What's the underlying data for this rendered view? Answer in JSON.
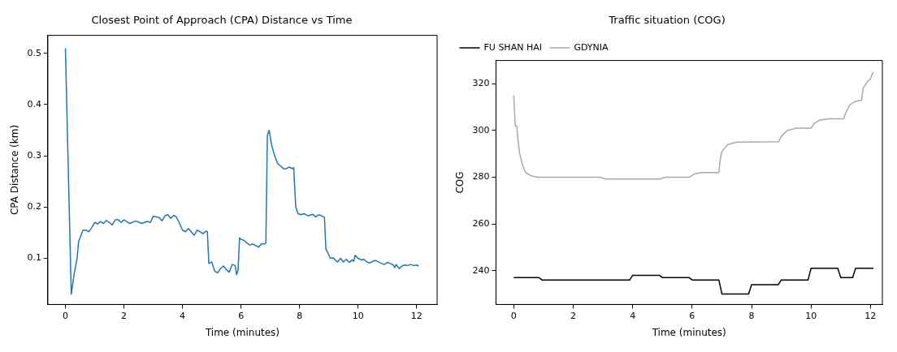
{
  "chart_data": [
    {
      "type": "line",
      "title": "Closest Point of Approach (CPA) Distance vs Time",
      "xlabel": "Time (minutes)",
      "ylabel": "CPA Distance (km)",
      "xlim": [
        -0.6,
        12.7
      ],
      "ylim": [
        0.01,
        0.535
      ],
      "xticks": [
        0,
        2,
        4,
        6,
        8,
        10,
        12
      ],
      "yticks": [
        0.1,
        0.2,
        0.3,
        0.4,
        0.5
      ],
      "grid": false,
      "legend": false,
      "series": [
        {
          "color": "#1f77b4",
          "x": [
            0,
            0.2,
            0.3,
            0.4,
            0.45,
            0.5,
            0.6,
            0.7,
            0.8,
            0.9,
            1.0,
            1.1,
            1.2,
            1.3,
            1.4,
            1.5,
            1.6,
            1.7,
            1.8,
            1.9,
            2.0,
            2.2,
            2.4,
            2.6,
            2.8,
            2.9,
            3.0,
            3.2,
            3.3,
            3.4,
            3.5,
            3.6,
            3.7,
            3.8,
            3.9,
            4.0,
            4.1,
            4.2,
            4.3,
            4.4,
            4.5,
            4.6,
            4.7,
            4.8,
            4.85,
            4.9,
            5.0,
            5.1,
            5.2,
            5.3,
            5.4,
            5.5,
            5.6,
            5.7,
            5.8,
            5.85,
            5.9,
            5.95,
            6.0,
            6.1,
            6.2,
            6.3,
            6.4,
            6.5,
            6.6,
            6.7,
            6.8,
            6.85,
            6.9,
            6.96,
            7.05,
            7.15,
            7.25,
            7.35,
            7.45,
            7.55,
            7.65,
            7.75,
            7.8,
            7.87,
            7.95,
            8.05,
            8.15,
            8.3,
            8.45,
            8.55,
            8.65,
            8.75,
            8.85,
            8.9,
            8.95,
            9.05,
            9.15,
            9.25,
            9.3,
            9.4,
            9.5,
            9.6,
            9.7,
            9.8,
            9.85,
            9.9,
            10.0,
            10.1,
            10.2,
            10.3,
            10.4,
            10.5,
            10.6,
            10.8,
            10.9,
            11.0,
            11.1,
            11.2,
            11.25,
            11.3,
            11.4,
            11.5,
            11.6,
            11.7,
            11.8,
            11.9,
            12.0,
            12.07
          ],
          "values": [
            0.51,
            0.03,
            0.07,
            0.1,
            0.133,
            0.14,
            0.155,
            0.155,
            0.152,
            0.16,
            0.17,
            0.167,
            0.172,
            0.168,
            0.174,
            0.17,
            0.165,
            0.175,
            0.176,
            0.17,
            0.175,
            0.168,
            0.173,
            0.168,
            0.172,
            0.17,
            0.182,
            0.18,
            0.173,
            0.183,
            0.185,
            0.178,
            0.184,
            0.18,
            0.168,
            0.155,
            0.152,
            0.158,
            0.152,
            0.145,
            0.155,
            0.152,
            0.148,
            0.153,
            0.152,
            0.09,
            0.093,
            0.075,
            0.072,
            0.08,
            0.085,
            0.078,
            0.073,
            0.088,
            0.086,
            0.068,
            0.078,
            0.14,
            0.137,
            0.135,
            0.13,
            0.126,
            0.128,
            0.125,
            0.122,
            0.128,
            0.128,
            0.13,
            0.34,
            0.35,
            0.32,
            0.3,
            0.285,
            0.28,
            0.275,
            0.275,
            0.278,
            0.275,
            0.277,
            0.2,
            0.187,
            0.185,
            0.187,
            0.183,
            0.186,
            0.181,
            0.185,
            0.183,
            0.18,
            0.118,
            0.113,
            0.1,
            0.101,
            0.095,
            0.093,
            0.1,
            0.093,
            0.098,
            0.092,
            0.097,
            0.094,
            0.106,
            0.1,
            0.097,
            0.098,
            0.093,
            0.091,
            0.094,
            0.096,
            0.09,
            0.088,
            0.092,
            0.09,
            0.087,
            0.082,
            0.088,
            0.08,
            0.085,
            0.087,
            0.086,
            0.088,
            0.086,
            0.087,
            0.085
          ]
        }
      ]
    },
    {
      "type": "line",
      "title": "Traffic situation (COG)",
      "xlabel": "Time (minutes)",
      "ylabel": "COG",
      "xlim": [
        -0.6,
        12.4
      ],
      "ylim": [
        225.5,
        330
      ],
      "xticks": [
        0,
        2,
        4,
        6,
        8,
        10,
        12
      ],
      "yticks": [
        240,
        260,
        280,
        300,
        320
      ],
      "grid": false,
      "legend": "top left",
      "series": [
        {
          "name": "FU SHAN HAI",
          "color": "#000000",
          "x": [
            0,
            0.85,
            0.95,
            3.9,
            4.0,
            4.9,
            5.0,
            5.9,
            6.0,
            6.9,
            7.0,
            7.9,
            8.0,
            8.9,
            9.0,
            9.9,
            10.0,
            10.9,
            11.0,
            11.4,
            11.5,
            12.1
          ],
          "values": [
            237,
            237,
            236,
            236,
            238,
            238,
            237,
            237,
            236,
            236,
            230,
            230,
            234,
            234,
            236,
            236,
            241,
            241,
            237,
            237,
            241,
            241
          ]
        },
        {
          "name": "GDYNIA",
          "color": "#aaaaaa",
          "x": [
            0,
            0.05,
            0.1,
            0.15,
            0.2,
            0.3,
            0.4,
            0.6,
            0.8,
            2.9,
            3.1,
            4.9,
            5.1,
            5.9,
            6.1,
            6.3,
            6.9,
            6.95,
            7.0,
            7.2,
            7.5,
            8.9,
            9.0,
            9.2,
            9.5,
            10.0,
            10.1,
            10.3,
            10.6,
            11.1,
            11.15,
            11.3,
            11.5,
            11.7,
            11.75,
            11.9,
            12.0,
            12.05,
            12.1
          ],
          "values": [
            315,
            302,
            302,
            295,
            290,
            285,
            282,
            280.5,
            280,
            280,
            279.2,
            279.2,
            280,
            280,
            281.5,
            282,
            282,
            288,
            291,
            294,
            295,
            295.2,
            297.5,
            300,
            301,
            301,
            303,
            304.5,
            305,
            305,
            307,
            311,
            312.5,
            313,
            318,
            321,
            322,
            324,
            325
          ]
        }
      ]
    }
  ]
}
